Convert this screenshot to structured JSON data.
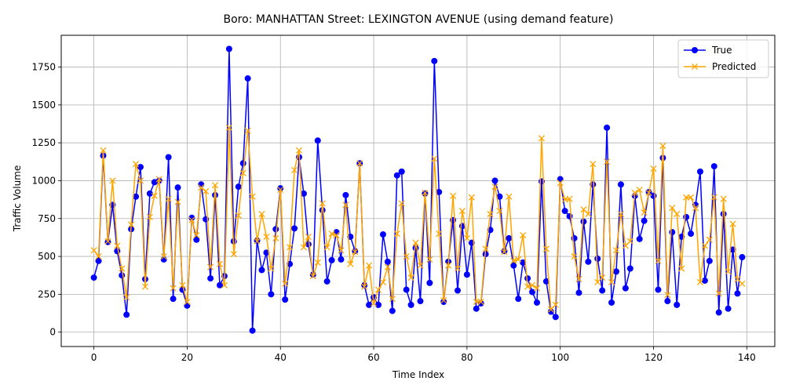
{
  "chart_data": {
    "type": "line",
    "title": "Boro: MANHATTAN Street: LEXINGTON AVENUE (using demand feature)",
    "xlabel": "Time Index",
    "ylabel": "Traffic Volume",
    "xlim": [
      -7,
      146
    ],
    "ylim": [
      -95,
      1960
    ],
    "xticks": [
      0,
      20,
      40,
      60,
      80,
      100,
      120,
      140
    ],
    "yticks": [
      0,
      250,
      500,
      750,
      1000,
      1250,
      1500,
      1750
    ],
    "grid": true,
    "legend_position": "top-right",
    "series": [
      {
        "name": "True",
        "color": "#0000ff",
        "marker": "circle",
        "values": [
          360,
          470,
          1165,
          595,
          840,
          535,
          375,
          115,
          680,
          895,
          1090,
          350,
          915,
          990,
          1000,
          480,
          1155,
          220,
          955,
          280,
          175,
          755,
          610,
          975,
          745,
          355,
          905,
          310,
          370,
          1870,
          600,
          960,
          1115,
          1675,
          10,
          605,
          410,
          525,
          250,
          680,
          950,
          215,
          450,
          685,
          1155,
          915,
          580,
          380,
          1265,
          805,
          335,
          475,
          660,
          480,
          905,
          630,
          535,
          1115,
          310,
          180,
          230,
          180,
          645,
          465,
          140,
          1035,
          1060,
          280,
          180,
          555,
          205,
          915,
          325,
          1790,
          925,
          200,
          465,
          740,
          275,
          700,
          380,
          590,
          155,
          190,
          515,
          675,
          1000,
          895,
          535,
          620,
          440,
          220,
          460,
          355,
          265,
          195,
          995,
          335,
          135,
          100,
          1010,
          800,
          765,
          620,
          260,
          730,
          465,
          975,
          485,
          275,
          1350,
          195,
          400,
          975,
          290,
          420,
          900,
          615,
          735,
          925,
          900,
          280,
          1150,
          205,
          660,
          180,
          630,
          760,
          650,
          840,
          1060,
          340,
          470,
          1095,
          130,
          780,
          155,
          545,
          255,
          495
        ]
      },
      {
        "name": "Predicted",
        "color": "#ffa500",
        "marker": "x",
        "values": [
          540,
          500,
          1200,
          600,
          1000,
          570,
          420,
          230,
          710,
          1110,
          1000,
          300,
          760,
          900,
          1010,
          500,
          880,
          290,
          860,
          310,
          200,
          740,
          640,
          955,
          930,
          430,
          970,
          450,
          310,
          1350,
          515,
          770,
          1050,
          1330,
          895,
          600,
          780,
          630,
          420,
          620,
          940,
          320,
          560,
          1070,
          1200,
          560,
          630,
          370,
          460,
          850,
          560,
          650,
          640,
          540,
          840,
          450,
          530,
          1115,
          300,
          440,
          190,
          280,
          330,
          430,
          220,
          650,
          850,
          500,
          360,
          590,
          440,
          920,
          480,
          1145,
          650,
          210,
          440,
          900,
          420,
          800,
          620,
          890,
          200,
          200,
          550,
          780,
          960,
          800,
          530,
          895,
          470,
          480,
          640,
          300,
          310,
          290,
          1280,
          550,
          150,
          180,
          985,
          875,
          880,
          500,
          350,
          810,
          780,
          1110,
          330,
          360,
          1125,
          330,
          540,
          780,
          570,
          600,
          920,
          940,
          790,
          920,
          1080,
          470,
          1230,
          245,
          820,
          780,
          420,
          890,
          890,
          820,
          330,
          570,
          610,
          890,
          255,
          880,
          400,
          715,
          350,
          320
        ]
      }
    ]
  }
}
